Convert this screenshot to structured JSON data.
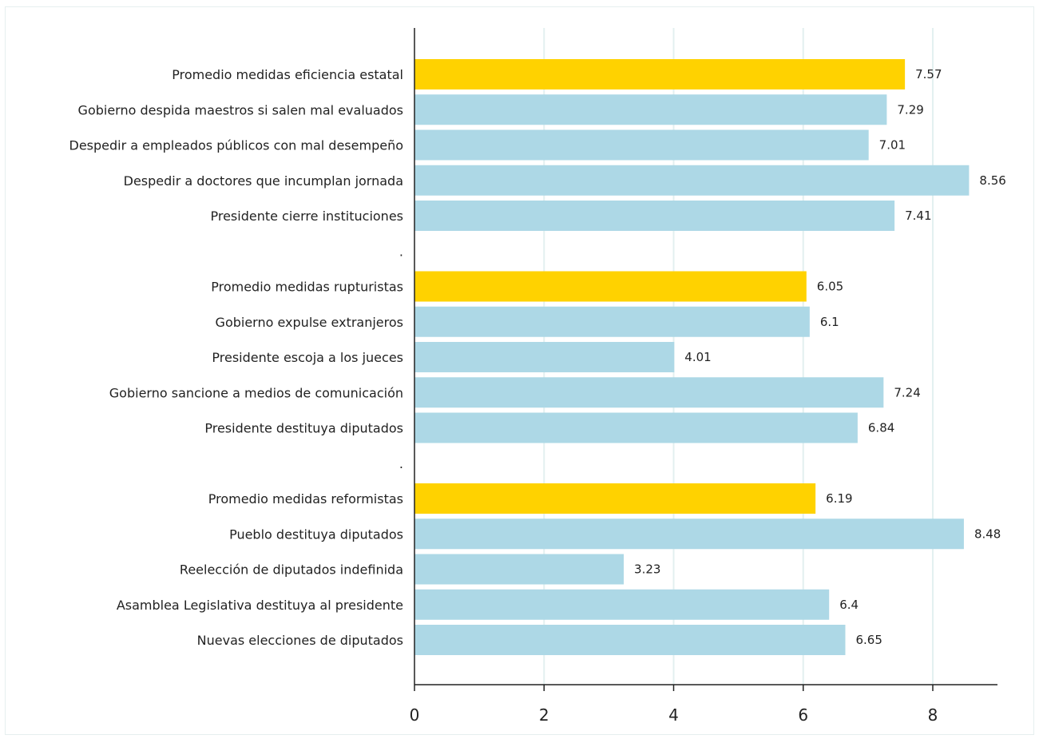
{
  "chart_data": {
    "type": "bar",
    "orientation": "horizontal",
    "categories": [
      "Promedio medidas eficiencia estatal",
      "Gobierno despida maestros si salen mal evaluados",
      "Despedir a empleados públicos con mal desempeño",
      "Despedir a doctores que incumplan jornada",
      "Presidente cierre instituciones",
      ".",
      "Promedio medidas rupturistas",
      "Gobierno expulse extranjeros",
      "Presidente escoja a los jueces",
      "Gobierno sancione a medios de comunicación",
      "Presidente destituya diputados",
      ".",
      "Promedio medidas reformistas",
      "Pueblo destituya diputados",
      "Reelección de diputados indefinida",
      "Asamblea Legislativa destituya al presidente",
      "Nuevas elecciones de diputados"
    ],
    "values": [
      7.57,
      7.29,
      7.01,
      8.56,
      7.41,
      null,
      6.05,
      6.1,
      4.01,
      7.24,
      6.84,
      null,
      6.19,
      8.48,
      3.23,
      6.4,
      6.65
    ],
    "value_labels": [
      "7.57",
      "7.29",
      "7.01",
      "8.56",
      "7.41",
      "",
      "6.05",
      "6.1",
      "4.01",
      "7.24",
      "6.84",
      "",
      "6.19",
      "8.48",
      "3.23",
      "6.4",
      "6.65"
    ],
    "highlight": [
      true,
      false,
      false,
      false,
      false,
      false,
      true,
      false,
      false,
      false,
      false,
      false,
      true,
      false,
      false,
      false,
      false
    ],
    "colors": {
      "highlight": "#ffd200",
      "default": "#add8e6",
      "grid": "#e3f0f0",
      "axis": "#222222"
    },
    "xlim": [
      0,
      9
    ],
    "xticks": [
      "0",
      "2",
      "4",
      "6",
      "8"
    ],
    "xtick_values": [
      0,
      2,
      4,
      6,
      8
    ],
    "grid": true,
    "title": "",
    "xlabel": "",
    "ylabel": ""
  }
}
